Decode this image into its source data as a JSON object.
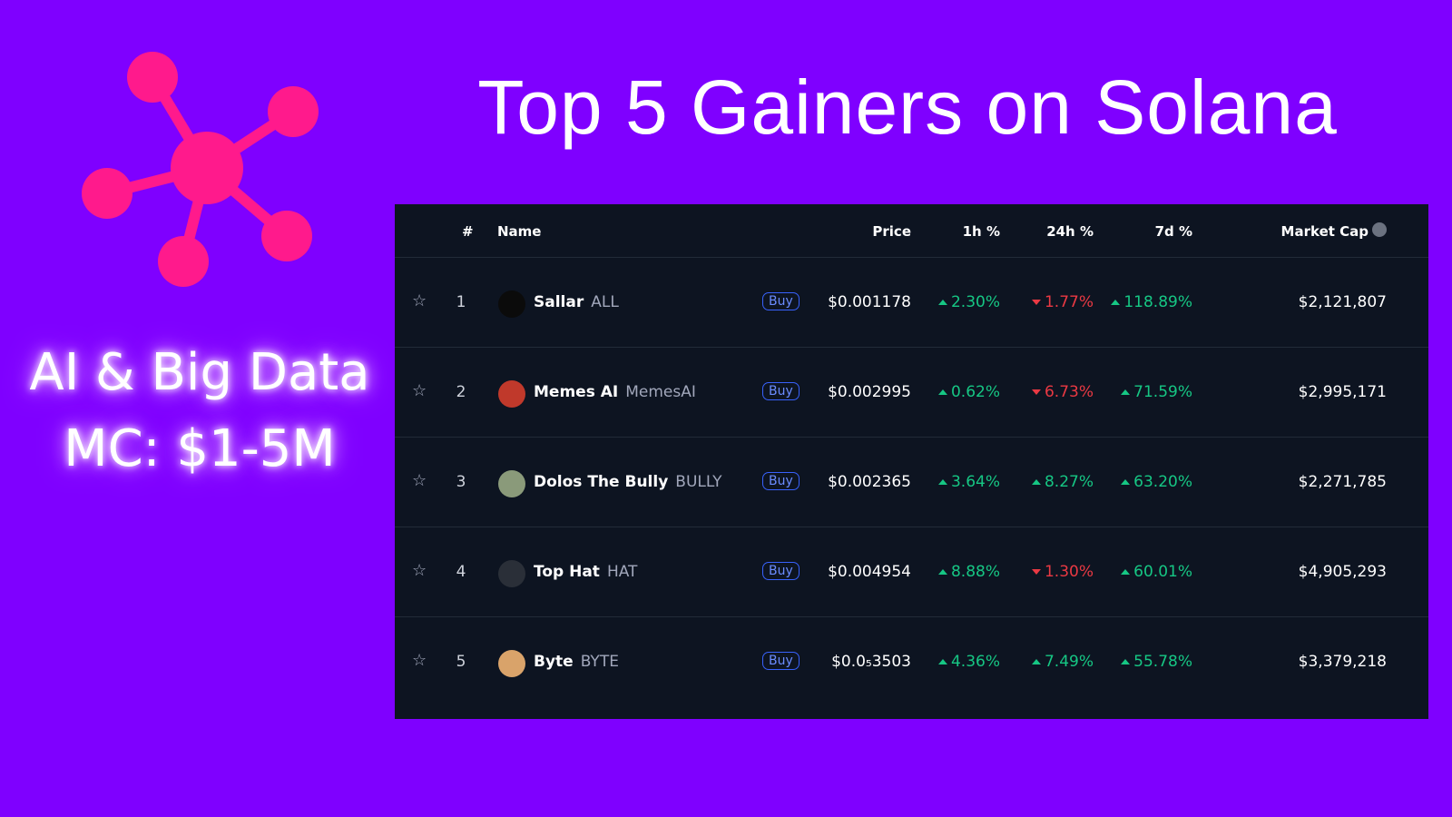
{
  "header": {
    "title": "Top 5 Gainers on Solana"
  },
  "side": {
    "line1": "AI & Big Data",
    "line2": "MC: $1-5M"
  },
  "table": {
    "columns": [
      "#",
      "Name",
      "Price",
      "1h %",
      "24h %",
      "7d %",
      "Market Cap"
    ],
    "rows": [
      {
        "rank": "1",
        "name": "Sallar",
        "symbol": "ALL",
        "action": "Buy",
        "price": "$0.001178",
        "h1": {
          "text": "2.30%",
          "dir": "up"
        },
        "h24": {
          "text": "1.77%",
          "dir": "down"
        },
        "d7": {
          "text": "118.89%",
          "dir": "up"
        },
        "mcap": "$2,121,807",
        "icon": "#0b0b0b"
      },
      {
        "rank": "2",
        "name": "Memes AI",
        "symbol": "MemesAI",
        "action": "Buy",
        "price": "$0.002995",
        "h1": {
          "text": "0.62%",
          "dir": "up"
        },
        "h24": {
          "text": "6.73%",
          "dir": "down"
        },
        "d7": {
          "text": "71.59%",
          "dir": "up"
        },
        "mcap": "$2,995,171",
        "icon": "#c0392b"
      },
      {
        "rank": "3",
        "name": "Dolos The Bully",
        "symbol": "BULLY",
        "action": "Buy",
        "price": "$0.002365",
        "h1": {
          "text": "3.64%",
          "dir": "up"
        },
        "h24": {
          "text": "8.27%",
          "dir": "up"
        },
        "d7": {
          "text": "63.20%",
          "dir": "up"
        },
        "mcap": "$2,271,785",
        "icon": "#8a9a7a"
      },
      {
        "rank": "4",
        "name": "Top Hat",
        "symbol": "HAT",
        "action": "Buy",
        "price": "$0.004954",
        "h1": {
          "text": "8.88%",
          "dir": "up"
        },
        "h24": {
          "text": "1.30%",
          "dir": "down"
        },
        "d7": {
          "text": "60.01%",
          "dir": "up"
        },
        "mcap": "$4,905,293",
        "icon": "#2a2f38"
      },
      {
        "rank": "5",
        "name": "Byte",
        "symbol": "BYTE",
        "action": "Buy",
        "price": "$0.0₅3503",
        "h1": {
          "text": "4.36%",
          "dir": "up"
        },
        "h24": {
          "text": "7.49%",
          "dir": "up"
        },
        "d7": {
          "text": "55.78%",
          "dir": "up"
        },
        "mcap": "$3,379,218",
        "icon": "#d9a36a"
      }
    ]
  }
}
